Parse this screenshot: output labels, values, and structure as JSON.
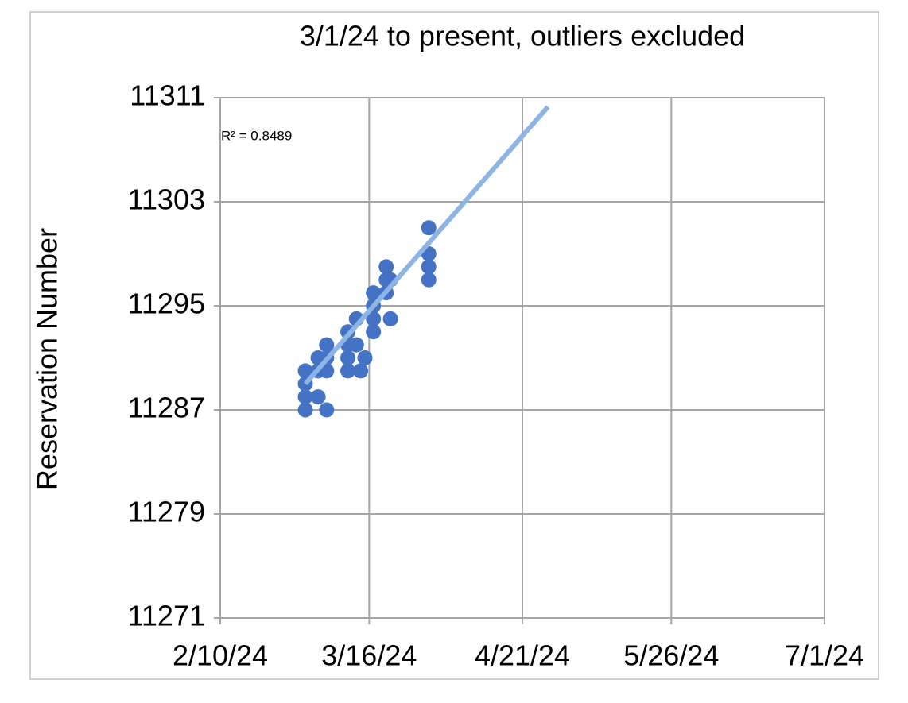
{
  "chart_data": {
    "type": "scatter",
    "title": "3/1/24 to present, outliers excluded",
    "y_label": "Reservation Number",
    "annotation": "R² = 0.8489",
    "grid": true,
    "color": "#4472c4",
    "x": [
      "2024-03-01",
      "2024-03-01",
      "2024-03-01",
      "2024-03-01",
      "2024-03-04",
      "2024-03-04",
      "2024-03-04",
      "2024-03-06",
      "2024-03-06",
      "2024-03-06",
      "2024-03-06",
      "2024-03-11",
      "2024-03-11",
      "2024-03-11",
      "2024-03-11",
      "2024-03-13",
      "2024-03-13",
      "2024-03-14",
      "2024-03-15",
      "2024-03-17",
      "2024-03-17",
      "2024-03-17",
      "2024-03-17",
      "2024-03-20",
      "2024-03-20",
      "2024-03-20",
      "2024-03-21",
      "2024-03-21",
      "2024-03-30",
      "2024-03-30",
      "2024-03-30",
      "2024-03-30"
    ],
    "values": [
      11290,
      11289,
      11288,
      11287,
      11291,
      11290,
      11288,
      11292,
      11291,
      11290,
      11287,
      11293,
      11292,
      11291,
      11290,
      11294,
      11292,
      11290,
      11291,
      11296,
      11295,
      11294,
      11293,
      11298,
      11297,
      11296,
      11294,
      11297,
      11301,
      11299,
      11298,
      11297
    ],
    "trendline": {
      "x": [
        "2024-03-01",
        "2024-04-27"
      ],
      "values": [
        11289,
        11310.3
      ],
      "color": "#8db4e2"
    },
    "xlim": [
      "2024-02-10",
      "2024-07-01"
    ],
    "xticks": [
      {
        "value": "2024-02-10",
        "label": "2/10/24"
      },
      {
        "value": "2024-03-16",
        "label": "3/16/24"
      },
      {
        "value": "2024-04-21",
        "label": "4/21/24"
      },
      {
        "value": "2024-05-26",
        "label": "5/26/24"
      },
      {
        "value": "2024-07-01",
        "label": "7/1/24"
      }
    ],
    "ylim": [
      11271,
      11311
    ],
    "yticks": [
      11271,
      11279,
      11287,
      11295,
      11303,
      11311
    ]
  }
}
